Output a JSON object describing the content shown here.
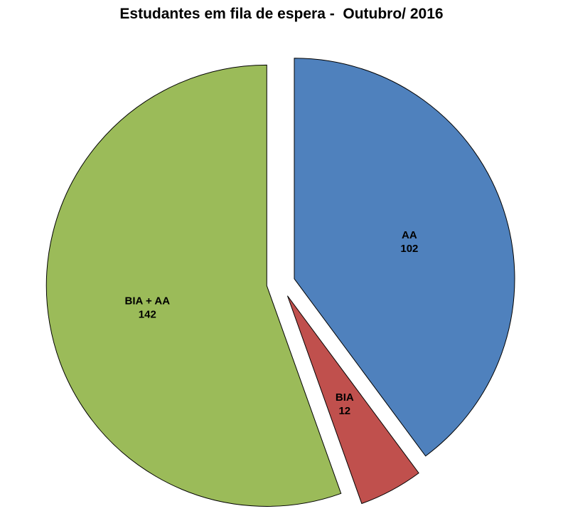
{
  "page": {
    "title": "Estudantes em fila de espera -  Outubro/ 2016"
  },
  "chart_data": {
    "type": "pie",
    "title": "Estudantes em fila de espera -  Outubro/ 2016",
    "total": 256,
    "start_angle_deg": 0,
    "direction": "clockwise",
    "exploded": true,
    "legend": "none",
    "slices": [
      {
        "label": "AA",
        "value": 102,
        "color": "#4F81BD"
      },
      {
        "label": "BIA",
        "value": 12,
        "color": "#C0504D"
      },
      {
        "label": "BIA + AA",
        "value": 142,
        "color": "#9BBB59"
      }
    ],
    "label_format": "name_and_value",
    "stroke_color": "#000000"
  }
}
